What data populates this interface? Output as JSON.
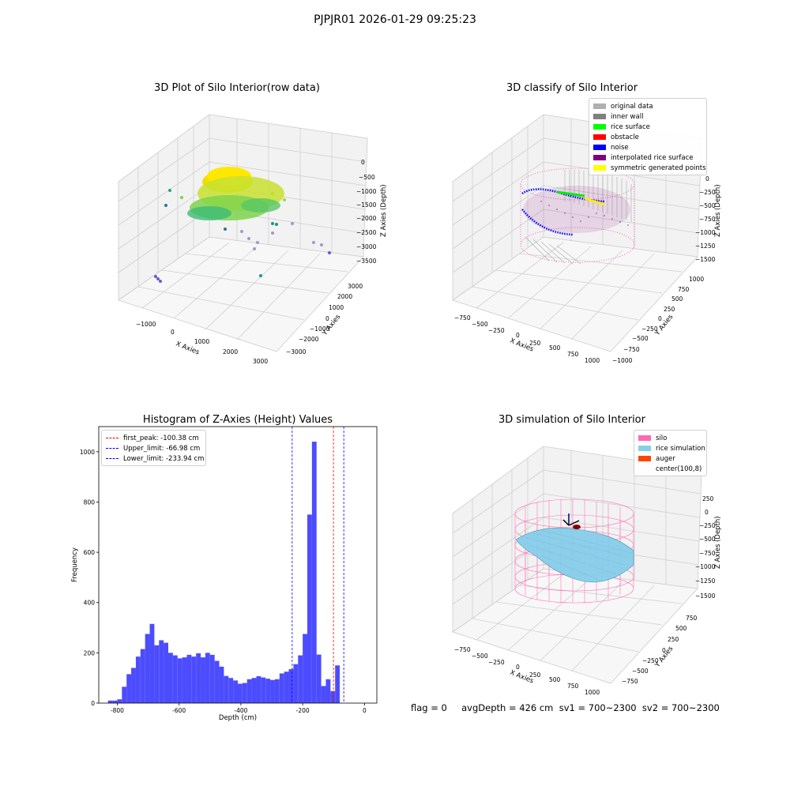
{
  "suptitle": "PJPJR01 2026-01-29 09:25:23",
  "panels": {
    "raw": {
      "title": "3D Plot of Silo Interior(row data)",
      "xlabel": "X Axies",
      "ylabel": "Y Axies",
      "zlabel": "Z Axies (Depth)",
      "xticks": [
        "−1000",
        "0",
        "1000",
        "2000",
        "3000"
      ],
      "yticks": [
        "−3000",
        "−2000",
        "−1000",
        "0",
        "1000",
        "2000",
        "3000"
      ],
      "zticks": [
        "0",
        "−500",
        "−1000",
        "−1500",
        "−2000",
        "−2500",
        "−3000",
        "−3500"
      ]
    },
    "classify": {
      "title": "3D classify of Silo Interior",
      "xlabel": "X Axies",
      "ylabel": "Y Axies",
      "zlabel": "Z Axies (Depth)",
      "xticks": [
        "−750",
        "−500",
        "−250",
        "0",
        "250",
        "500",
        "750",
        "1000"
      ],
      "yticks": [
        "−1000",
        "−750",
        "−500",
        "−250",
        "0",
        "250",
        "500",
        "750",
        "1000"
      ],
      "zticks": [
        "250",
        "0",
        "−250",
        "−500",
        "−750",
        "−1000",
        "−1250",
        "−1500"
      ],
      "legend": [
        {
          "label": "original data",
          "color": "#b0b0b0"
        },
        {
          "label": "inner wall",
          "color": "#808080"
        },
        {
          "label": "rice surface",
          "color": "#00ff00"
        },
        {
          "label": "obstacle",
          "color": "#ff0000"
        },
        {
          "label": "noise",
          "color": "#0000ff"
        },
        {
          "label": "interpolated rice surface",
          "color": "#800080"
        },
        {
          "label": "symmetric generated points",
          "color": "#ffff00"
        }
      ]
    },
    "simulation": {
      "title": "3D simulation of Silo Interior",
      "xlabel": "X Axies",
      "ylabel": "Y Axies",
      "zlabel": "Z Axies (Depth)",
      "xticks": [
        "−750",
        "−500",
        "−250",
        "0",
        "250",
        "500",
        "750",
        "1000"
      ],
      "yticks": [
        "−750",
        "−500",
        "−250",
        "0",
        "250",
        "500",
        "750"
      ],
      "zticks": [
        "250",
        "0",
        "−250",
        "−500",
        "−750",
        "−1000",
        "−1250",
        "−1500"
      ],
      "legend": [
        {
          "label": "silo",
          "color": "#ff69b4"
        },
        {
          "label": "rice simulation",
          "color": "#87ceeb"
        },
        {
          "label": "auger",
          "color": "#ff4500"
        },
        {
          "label": "center(100,8)",
          "color": ""
        }
      ]
    }
  },
  "footer": {
    "text": "flag = 0     avgDepth = 426 cm  sv1 = 700~2300  sv2 = 700~2300"
  },
  "chart_data": [
    {
      "type": "bar",
      "title": "Histogram of Z-Axies (Height) Values",
      "xlabel": "Depth (cm)",
      "ylabel": "Frequency",
      "xlim": [
        -860,
        40
      ],
      "ylim": [
        0,
        1100
      ],
      "xticks": [
        -800,
        -600,
        -400,
        -200,
        0
      ],
      "yticks": [
        0,
        200,
        400,
        600,
        800,
        1000
      ],
      "bin_width": 15,
      "bins": [
        {
          "x0": -830,
          "x1": -815,
          "y": 10
        },
        {
          "x0": -815,
          "x1": -800,
          "y": 10
        },
        {
          "x0": -800,
          "x1": -785,
          "y": 15
        },
        {
          "x0": -785,
          "x1": -770,
          "y": 65
        },
        {
          "x0": -770,
          "x1": -755,
          "y": 115
        },
        {
          "x0": -755,
          "x1": -740,
          "y": 140
        },
        {
          "x0": -740,
          "x1": -725,
          "y": 185
        },
        {
          "x0": -725,
          "x1": -710,
          "y": 215
        },
        {
          "x0": -710,
          "x1": -695,
          "y": 275
        },
        {
          "x0": -695,
          "x1": -680,
          "y": 315
        },
        {
          "x0": -680,
          "x1": -665,
          "y": 230
        },
        {
          "x0": -665,
          "x1": -650,
          "y": 250
        },
        {
          "x0": -650,
          "x1": -635,
          "y": 240
        },
        {
          "x0": -635,
          "x1": -620,
          "y": 200
        },
        {
          "x0": -620,
          "x1": -605,
          "y": 190
        },
        {
          "x0": -605,
          "x1": -590,
          "y": 178
        },
        {
          "x0": -590,
          "x1": -575,
          "y": 182
        },
        {
          "x0": -575,
          "x1": -560,
          "y": 192
        },
        {
          "x0": -560,
          "x1": -545,
          "y": 185
        },
        {
          "x0": -545,
          "x1": -530,
          "y": 198
        },
        {
          "x0": -530,
          "x1": -515,
          "y": 182
        },
        {
          "x0": -515,
          "x1": -500,
          "y": 200
        },
        {
          "x0": -500,
          "x1": -485,
          "y": 192
        },
        {
          "x0": -485,
          "x1": -470,
          "y": 168
        },
        {
          "x0": -470,
          "x1": -455,
          "y": 145
        },
        {
          "x0": -455,
          "x1": -440,
          "y": 108
        },
        {
          "x0": -440,
          "x1": -425,
          "y": 100
        },
        {
          "x0": -425,
          "x1": -410,
          "y": 90
        },
        {
          "x0": -410,
          "x1": -395,
          "y": 77
        },
        {
          "x0": -395,
          "x1": -380,
          "y": 80
        },
        {
          "x0": -380,
          "x1": -365,
          "y": 95
        },
        {
          "x0": -365,
          "x1": -350,
          "y": 100
        },
        {
          "x0": -350,
          "x1": -335,
          "y": 107
        },
        {
          "x0": -335,
          "x1": -320,
          "y": 102
        },
        {
          "x0": -320,
          "x1": -305,
          "y": 97
        },
        {
          "x0": -305,
          "x1": -290,
          "y": 92
        },
        {
          "x0": -290,
          "x1": -275,
          "y": 95
        },
        {
          "x0": -275,
          "x1": -260,
          "y": 118
        },
        {
          "x0": -260,
          "x1": -245,
          "y": 125
        },
        {
          "x0": -245,
          "x1": -230,
          "y": 135
        },
        {
          "x0": -230,
          "x1": -215,
          "y": 155
        },
        {
          "x0": -215,
          "x1": -200,
          "y": 190
        },
        {
          "x0": -200,
          "x1": -185,
          "y": 275
        },
        {
          "x0": -185,
          "x1": -170,
          "y": 750
        },
        {
          "x0": -170,
          "x1": -155,
          "y": 1040
        },
        {
          "x0": -155,
          "x1": -140,
          "y": 193
        },
        {
          "x0": -140,
          "x1": -125,
          "y": 68
        },
        {
          "x0": -125,
          "x1": -110,
          "y": 95
        },
        {
          "x0": -110,
          "x1": -95,
          "y": 48
        },
        {
          "x0": -95,
          "x1": -80,
          "y": 150
        }
      ],
      "vlines": [
        {
          "x": -100.38,
          "label": "first_peak: -100.38 cm",
          "color": "#ff0000"
        },
        {
          "x": -66.98,
          "label": "Upper_limit: -66.98 cm",
          "color": "#0000ff"
        },
        {
          "x": -233.94,
          "label": "Lower_limit: -233.94 cm",
          "color": "#0000ff"
        }
      ],
      "bar_color": "#4c4cff"
    }
  ]
}
